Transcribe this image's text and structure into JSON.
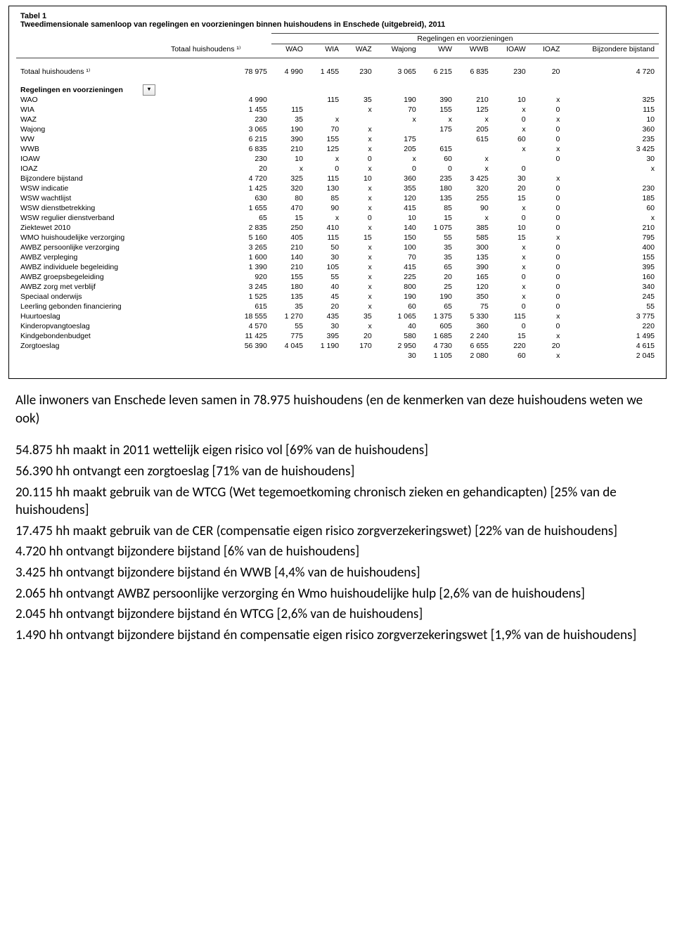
{
  "table": {
    "title": "Tabel 1",
    "subtitle": "Tweedimensionale samenloop van regelingen en voorzieningen binnen huishoudens in Enschede (uitgebreid), 2011",
    "super_header": "Regelingen en voorzieningen",
    "col_totaal": "Totaal huishoudens ¹⁾",
    "columns": [
      "WAO",
      "WIA",
      "WAZ",
      "Wajong",
      "WW",
      "WWB",
      "IOAW",
      "IOAZ",
      "Bijzondere bijstand"
    ],
    "totaal_row_label": "Totaal huishoudens ¹⁾",
    "totaal_row": [
      "78 975",
      "4 990",
      "1 455",
      "230",
      "3 065",
      "6 215",
      "6 835",
      "230",
      "20",
      "4 720"
    ],
    "section_label": "Regelingen en voorzieningen",
    "dropdown_glyph": "▾",
    "rows": [
      {
        "label": "WAO",
        "cells": [
          "4 990",
          "",
          "115",
          "35",
          "190",
          "390",
          "210",
          "10",
          "x",
          "325"
        ]
      },
      {
        "label": "WIA",
        "cells": [
          "1 455",
          "115",
          "",
          "x",
          "70",
          "155",
          "125",
          "x",
          "0",
          "115"
        ]
      },
      {
        "label": "WAZ",
        "cells": [
          "230",
          "35",
          "x",
          "",
          "x",
          "x",
          "x",
          "0",
          "x",
          "10"
        ]
      },
      {
        "label": "Wajong",
        "cells": [
          "3 065",
          "190",
          "70",
          "x",
          "",
          "175",
          "205",
          "x",
          "0",
          "360"
        ]
      },
      {
        "label": "WW",
        "cells": [
          "6 215",
          "390",
          "155",
          "x",
          "175",
          "",
          "615",
          "60",
          "0",
          "235"
        ]
      },
      {
        "label": "WWB",
        "cells": [
          "6 835",
          "210",
          "125",
          "x",
          "205",
          "615",
          "",
          "x",
          "x",
          "3 425"
        ]
      },
      {
        "label": "IOAW",
        "cells": [
          "230",
          "10",
          "x",
          "0",
          "x",
          "60",
          "x",
          "",
          "0",
          "30"
        ]
      },
      {
        "label": "IOAZ",
        "cells": [
          "20",
          "x",
          "0",
          "x",
          "0",
          "0",
          "x",
          "0",
          "",
          "x"
        ]
      },
      {
        "label": "Bijzondere bijstand",
        "cells": [
          "4 720",
          "325",
          "115",
          "10",
          "360",
          "235",
          "3 425",
          "30",
          "x",
          ""
        ]
      },
      {
        "label": "WSW indicatie",
        "cells": [
          "1 425",
          "320",
          "130",
          "x",
          "355",
          "180",
          "320",
          "20",
          "0",
          "230"
        ]
      },
      {
        "label": "WSW wachtlijst",
        "cells": [
          "630",
          "80",
          "85",
          "x",
          "120",
          "135",
          "255",
          "15",
          "0",
          "185"
        ]
      },
      {
        "label": "WSW dienstbetrekking",
        "cells": [
          "1 655",
          "470",
          "90",
          "x",
          "415",
          "85",
          "90",
          "x",
          "0",
          "60"
        ]
      },
      {
        "label": "WSW regulier dienstverband",
        "cells": [
          "65",
          "15",
          "x",
          "0",
          "10",
          "15",
          "x",
          "0",
          "0",
          "x"
        ]
      },
      {
        "label": "Ziektewet 2010",
        "cells": [
          "2 835",
          "250",
          "410",
          "x",
          "140",
          "1 075",
          "385",
          "10",
          "0",
          "210"
        ]
      },
      {
        "label": "WMO huishoudelijke verzorging",
        "cells": [
          "5 160",
          "405",
          "115",
          "15",
          "150",
          "55",
          "585",
          "15",
          "x",
          "795"
        ]
      },
      {
        "label": "AWBZ persoonlijke verzorging",
        "cells": [
          "3 265",
          "210",
          "50",
          "x",
          "100",
          "35",
          "300",
          "x",
          "0",
          "400"
        ]
      },
      {
        "label": "AWBZ verpleging",
        "cells": [
          "1 600",
          "140",
          "30",
          "x",
          "70",
          "35",
          "135",
          "x",
          "0",
          "155"
        ]
      },
      {
        "label": "AWBZ individuele begeleiding",
        "cells": [
          "1 390",
          "210",
          "105",
          "x",
          "415",
          "65",
          "390",
          "x",
          "0",
          "395"
        ]
      },
      {
        "label": "AWBZ groepsbegeleiding",
        "cells": [
          "920",
          "155",
          "55",
          "x",
          "225",
          "20",
          "165",
          "0",
          "0",
          "160"
        ]
      },
      {
        "label": "AWBZ zorg met verblijf",
        "cells": [
          "3 245",
          "180",
          "40",
          "x",
          "800",
          "25",
          "120",
          "x",
          "0",
          "340"
        ]
      },
      {
        "label": "Speciaal onderwijs",
        "cells": [
          "1 525",
          "135",
          "45",
          "x",
          "190",
          "190",
          "350",
          "x",
          "0",
          "245"
        ]
      },
      {
        "label": "Leerling gebonden financiering",
        "cells": [
          "615",
          "35",
          "20",
          "x",
          "60",
          "65",
          "75",
          "0",
          "0",
          "55"
        ]
      },
      {
        "label": "Huurtoeslag",
        "cells": [
          "18 555",
          "1 270",
          "435",
          "35",
          "1 065",
          "1 375",
          "5 330",
          "115",
          "x",
          "3 775"
        ]
      },
      {
        "label": "Kinderopvangtoeslag",
        "cells": [
          "4 570",
          "55",
          "30",
          "x",
          "40",
          "605",
          "360",
          "0",
          "0",
          "220"
        ]
      },
      {
        "label": "Kindgebondenbudget",
        "cells": [
          "11 425",
          "775",
          "395",
          "20",
          "580",
          "1 685",
          "2 240",
          "15",
          "x",
          "1 495"
        ]
      },
      {
        "label": "Zorgtoeslag",
        "cells": [
          "56 390",
          "4 045",
          "1 190",
          "170",
          "2 950",
          "4 730",
          "6 655",
          "220",
          "20",
          "4 615"
        ]
      },
      {
        "label": "",
        "cells": [
          "",
          "",
          "",
          "",
          "30",
          "1 105",
          "2 080",
          "60",
          "x",
          "2 045"
        ]
      }
    ]
  },
  "text": {
    "p1": "Alle inwoners van Enschede leven samen in 78.975 huishoudens (en de kenmerken van deze huishoudens weten we ook)",
    "p2": "54.875 hh maakt in 2011 wettelijk eigen risico vol [69% van de huishoudens]",
    "p3": "56.390 hh ontvangt een zorgtoeslag [71% van de huishoudens]",
    "p4": "20.115 hh maakt gebruik van de WTCG (Wet tegemoetkoming chronisch zieken en gehandicapten) [25% van de huishoudens]",
    "p5": "17.475 hh maakt gebruik van de CER (compensatie eigen risico zorgverzekeringswet) [22% van de huishoudens]",
    "p6": "4.720 hh ontvangt bijzondere bijstand [6% van de huishoudens]",
    "p7": "3.425 hh ontvangt bijzondere bijstand én WWB [4,4% van de huishoudens]",
    "p8": "2.065 hh ontvangt AWBZ persoonlijke verzorging én Wmo huishoudelijke hulp [2,6% van de huishoudens]",
    "p9": "2.045 hh ontvangt bijzondere bijstand én WTCG [2,6% van de huishoudens]",
    "p10": "1.490 hh ontvangt bijzondere bijstand én compensatie eigen risico zorgverzekeringswet [1,9% van de huishoudens]"
  }
}
